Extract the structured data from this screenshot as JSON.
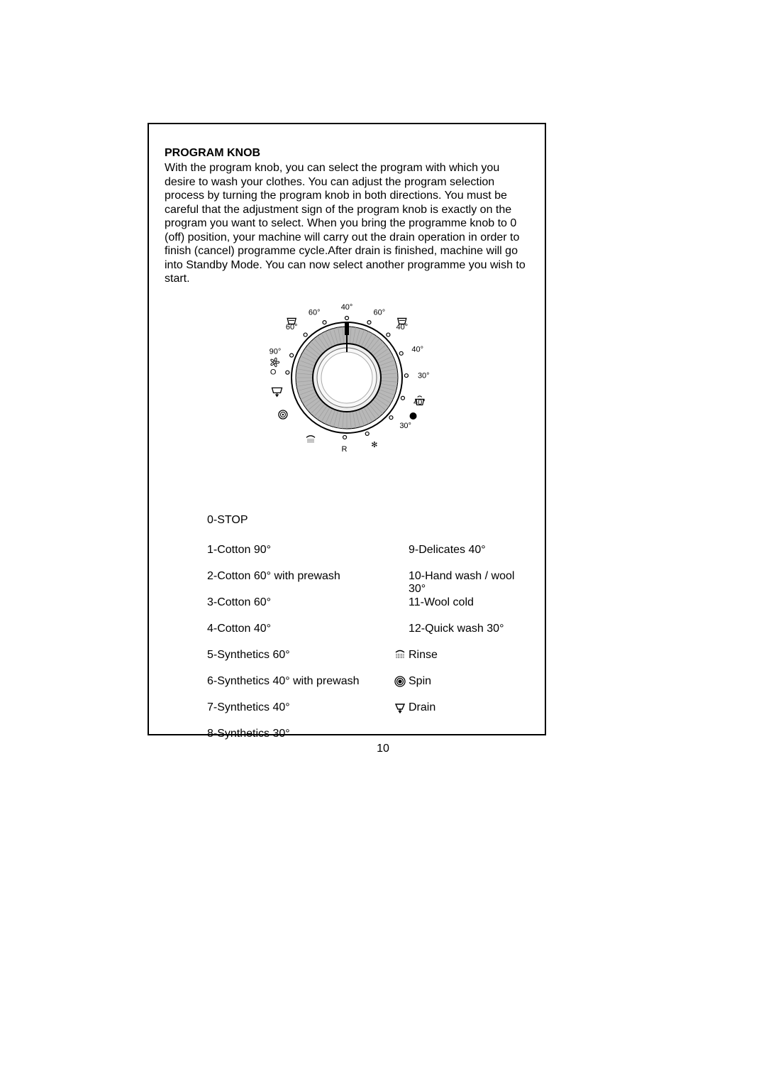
{
  "title": "PROGRAM KNOB",
  "body": "With the program knob, you can select the program with which you desire to wash your clothes. You can adjust the program selection process by turning the program knob in both directions. You must be careful that the adjustment sign of the program knob is exactly on the program you want to select. When you bring the programme knob to 0 (off) position, your machine will carry out the drain operation in order to finish (cancel) programme cycle.After drain is finished, machine will go into Standby Mode. You can now select another programme you wish to start.",
  "page_number": "10",
  "knob": {
    "outer_labels": [
      {
        "text": "O",
        "angle": -85
      },
      {
        "text": "90°",
        "angle": -68
      },
      {
        "text": "60°",
        "angle": -44
      },
      {
        "text": "60°",
        "angle": -22
      },
      {
        "text": "40°",
        "angle": 0
      },
      {
        "text": "60°",
        "angle": 22
      },
      {
        "text": "40°",
        "angle": 44
      },
      {
        "text": "40°",
        "angle": 66
      },
      {
        "text": "30°",
        "angle": 88
      },
      {
        "text": "40°",
        "angle": 110
      },
      {
        "text": "30°",
        "angle": 132
      },
      {
        "text": "R",
        "angle": 182
      },
      {
        "text": "✻",
        "angle": 160
      }
    ],
    "colors": {
      "ring_outer": "#000000",
      "ring_mid": "#888888",
      "ring_inner": "#cccccc",
      "ticks": "#000000",
      "text": "#000000"
    }
  },
  "programs": {
    "stop": "0-STOP",
    "left": [
      "1-Cotton 90°",
      "2-Cotton 60° with prewash",
      "3-Cotton 60°",
      "4-Cotton 40°",
      "5-Synthetics 60°",
      "6-Synthetics 40° with prewash",
      "7-Synthetics 40°",
      "8-Synthetics 30°"
    ],
    "right": [
      {
        "label": "9-Delicates 40°",
        "icon": null
      },
      {
        "label": "10-Hand wash / wool 30°",
        "icon": null
      },
      {
        "label": "11-Wool cold",
        "icon": null
      },
      {
        "label": "12-Quick wash 30°",
        "icon": null
      },
      {
        "label": "Rinse",
        "icon": "rinse"
      },
      {
        "label": "Spin",
        "icon": "spin"
      },
      {
        "label": "Drain",
        "icon": "drain"
      }
    ]
  }
}
